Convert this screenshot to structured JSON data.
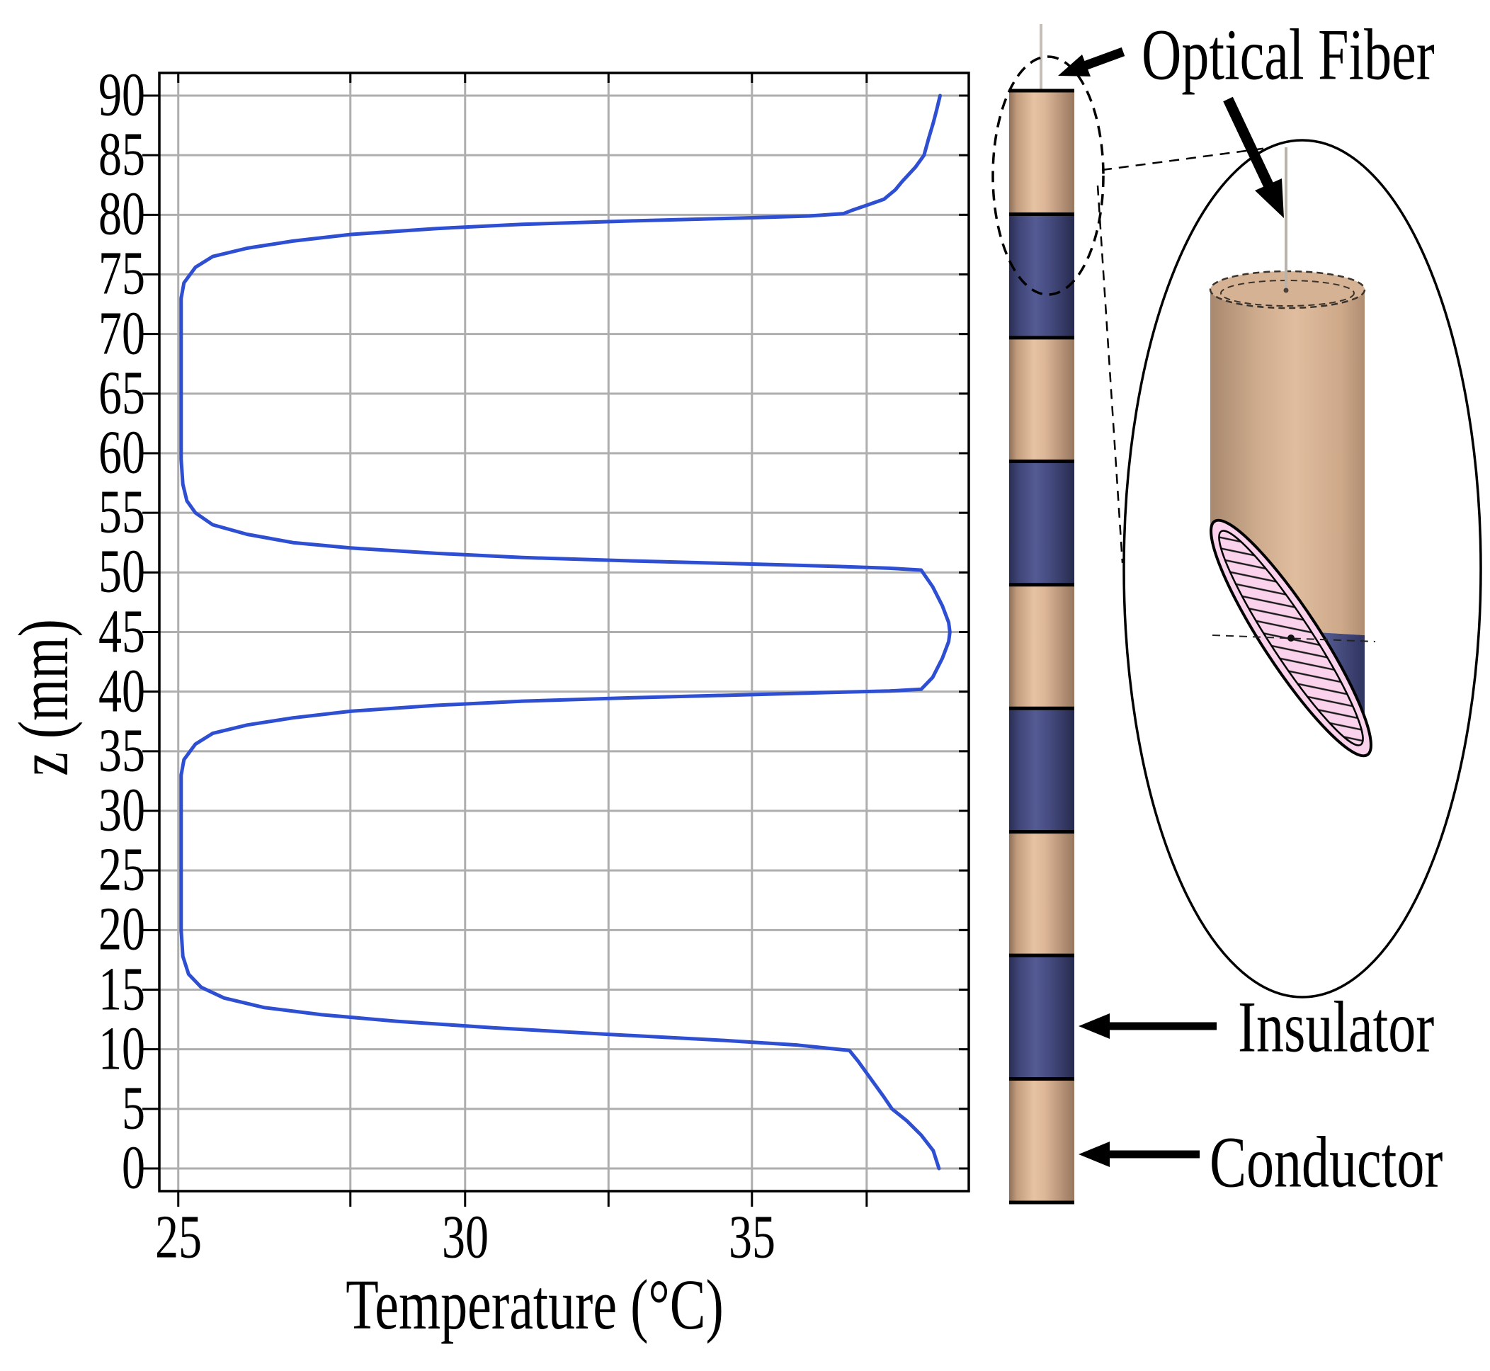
{
  "figure_type": "temperature-profile-figure",
  "chart_data": {
    "type": "line",
    "title": "",
    "xlabel": "Temperature (°C)",
    "ylabel": "z (mm)",
    "xlim": [
      24.67,
      38.78
    ],
    "ylim": [
      -1.9,
      91.9
    ],
    "x_tick_labels": [
      "25",
      "30",
      "35"
    ],
    "x_tick_values": [
      25,
      30,
      35
    ],
    "x_grid_positions": [
      25,
      28,
      30,
      32.5,
      35,
      37
    ],
    "y_ticks": [
      0,
      5,
      10,
      15,
      20,
      25,
      30,
      35,
      40,
      45,
      50,
      55,
      60,
      65,
      70,
      75,
      80,
      85,
      90
    ],
    "grid": true,
    "legend": "none",
    "series": [
      {
        "name": "temperature-profile",
        "color": "#2e4fd2",
        "points": [
          [
            38.26,
            0
          ],
          [
            38.16,
            1.5
          ],
          [
            37.95,
            2.8
          ],
          [
            37.7,
            4.0
          ],
          [
            37.44,
            5.0
          ],
          [
            37.3,
            6.0
          ],
          [
            37.15,
            7.0
          ],
          [
            37.0,
            8.0
          ],
          [
            36.85,
            9.0
          ],
          [
            36.7,
            9.9
          ],
          [
            35.8,
            10.35
          ],
          [
            34.5,
            10.75
          ],
          [
            32.5,
            11.25
          ],
          [
            30.5,
            11.8
          ],
          [
            28.8,
            12.35
          ],
          [
            27.5,
            12.9
          ],
          [
            26.5,
            13.5
          ],
          [
            25.8,
            14.3
          ],
          [
            25.4,
            15.2
          ],
          [
            25.18,
            16.3
          ],
          [
            25.08,
            17.8
          ],
          [
            25.05,
            20.0
          ],
          [
            25.05,
            33.0
          ],
          [
            25.1,
            34.3
          ],
          [
            25.3,
            35.6
          ],
          [
            25.6,
            36.5
          ],
          [
            26.2,
            37.2
          ],
          [
            27.0,
            37.8
          ],
          [
            28.0,
            38.35
          ],
          [
            29.5,
            38.85
          ],
          [
            31.0,
            39.2
          ],
          [
            33.0,
            39.5
          ],
          [
            35.0,
            39.75
          ],
          [
            36.5,
            39.95
          ],
          [
            37.4,
            40.05
          ],
          [
            37.95,
            40.2
          ],
          [
            38.15,
            41.2
          ],
          [
            38.32,
            42.8
          ],
          [
            38.43,
            44.2
          ],
          [
            38.45,
            45.0
          ],
          [
            38.43,
            45.8
          ],
          [
            38.32,
            47.2
          ],
          [
            38.15,
            48.8
          ],
          [
            37.95,
            50.2
          ],
          [
            37.4,
            50.35
          ],
          [
            36.5,
            50.5
          ],
          [
            35.0,
            50.7
          ],
          [
            33.0,
            50.95
          ],
          [
            31.0,
            51.25
          ],
          [
            29.5,
            51.6
          ],
          [
            28.0,
            52.05
          ],
          [
            27.0,
            52.5
          ],
          [
            26.2,
            53.2
          ],
          [
            25.6,
            54.0
          ],
          [
            25.3,
            55.0
          ],
          [
            25.15,
            56.0
          ],
          [
            25.08,
            57.4
          ],
          [
            25.05,
            59.5
          ],
          [
            25.05,
            73.0
          ],
          [
            25.1,
            74.3
          ],
          [
            25.3,
            75.6
          ],
          [
            25.6,
            76.5
          ],
          [
            26.2,
            77.2
          ],
          [
            27.0,
            77.8
          ],
          [
            28.0,
            78.35
          ],
          [
            29.5,
            78.85
          ],
          [
            31.0,
            79.2
          ],
          [
            33.0,
            79.5
          ],
          [
            35.0,
            79.75
          ],
          [
            36.0,
            79.9
          ],
          [
            36.6,
            80.1
          ],
          [
            36.73,
            80.35
          ],
          [
            37.0,
            80.8
          ],
          [
            37.3,
            81.3
          ],
          [
            37.5,
            82.1
          ],
          [
            37.62,
            82.8
          ],
          [
            37.85,
            84.0
          ],
          [
            38.0,
            85.0
          ],
          [
            38.08,
            86.4
          ],
          [
            38.16,
            87.7
          ],
          [
            38.22,
            88.8
          ],
          [
            38.28,
            90.0
          ]
        ]
      }
    ]
  },
  "plot": {
    "xlabel": "Temperature (°C)",
    "ylabel": "z (mm)"
  },
  "annotations": {
    "optical_fiber": "Optical Fiber",
    "insulator": "Insulator",
    "conductor": "Conductor"
  },
  "probe": {
    "description": "segmented cylindrical probe, alternating conductor and insulator, optical fiber entering at top",
    "segments": [
      {
        "type": "conductor"
      },
      {
        "type": "insulator"
      },
      {
        "type": "conductor"
      },
      {
        "type": "insulator"
      },
      {
        "type": "conductor"
      },
      {
        "type": "insulator"
      },
      {
        "type": "conductor"
      },
      {
        "type": "insulator"
      },
      {
        "type": "conductor"
      }
    ]
  },
  "colors": {
    "curve_blue": "#2e4fd2",
    "grid_gray": "#aeaeae",
    "axis_black": "#000000",
    "conductor_tan": "#d6b295",
    "insulator_navy": "#474d82",
    "fiber_gray": "#c5bfb8",
    "cross_section_pink": "#fad2ec"
  }
}
